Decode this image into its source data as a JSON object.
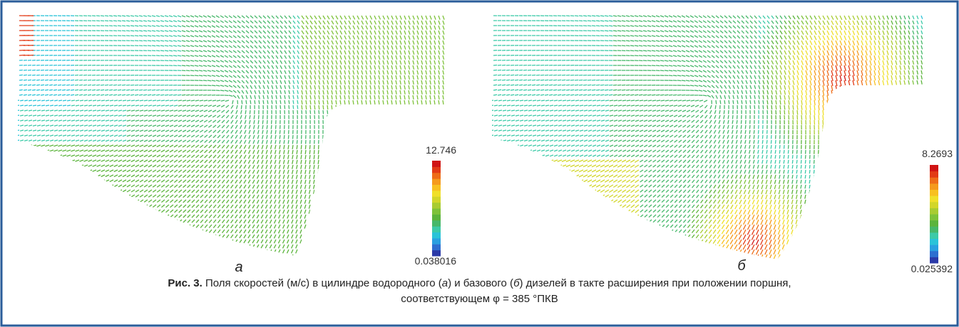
{
  "figure": {
    "panels": [
      {
        "label": "а",
        "colorbar": {
          "max": "12.746",
          "min": "0.038016"
        }
      },
      {
        "label": "б",
        "colorbar": {
          "max": "8.2693",
          "min": "0.025392"
        }
      }
    ],
    "caption": {
      "label": "Рис. 3.",
      "parts": [
        "Поля скоростей (м/с) в цилиндре водородного (",
        "а",
        ") и базового (",
        "б",
        ") дизелей в такте расширения при положении поршня,"
      ],
      "line2": "соответствующем φ = 385 °ПКВ"
    }
  }
}
